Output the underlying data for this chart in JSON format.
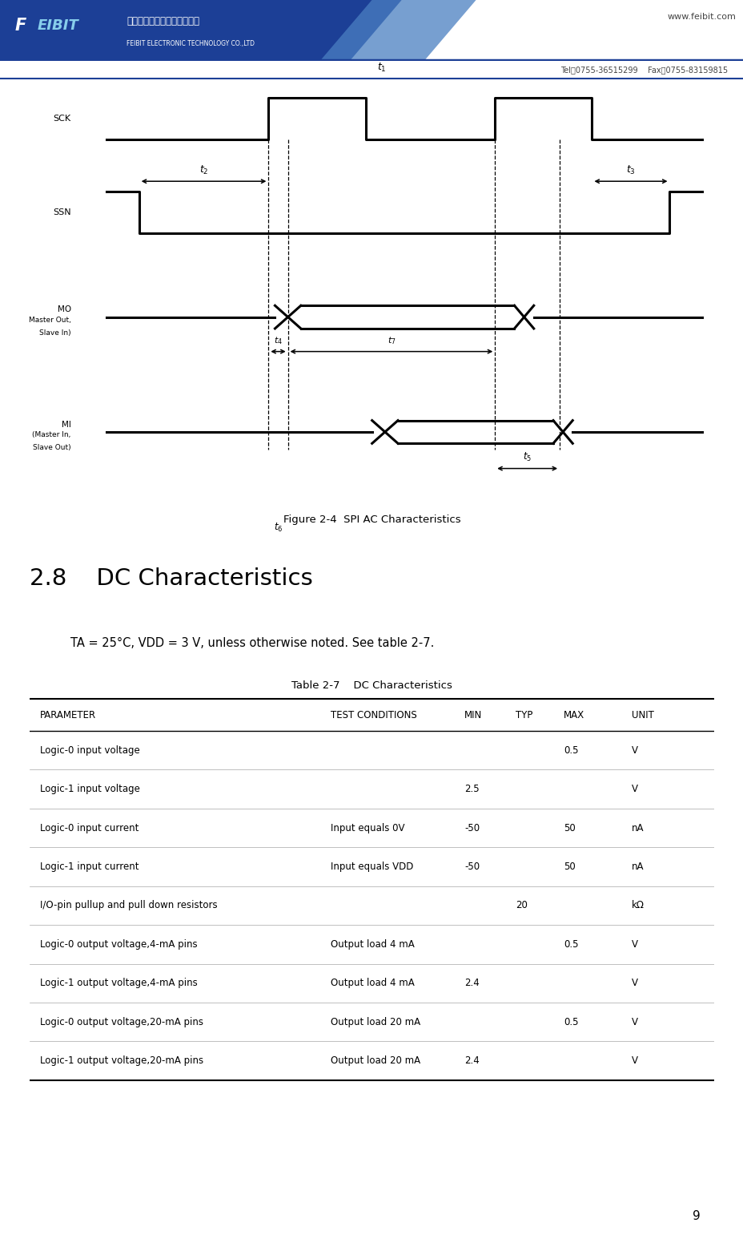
{
  "page_width": 9.29,
  "page_height": 15.56,
  "background_color": "#ffffff",
  "company_url": "www.feibit.com",
  "tel_fax": "Tel： 0755-36515299    Fax： 0755-83159815",
  "figure_caption": "Figure 2-4  SPI AC Characteristics",
  "section_title": "2.8    DC Characteristics",
  "condition_text": "TA = 25°C, VDD = 3 V, unless otherwise noted. See table 2-7.",
  "table_title": "Table 2-7    DC Characteristics",
  "page_number": "9",
  "table_headers": [
    "PARAMETER",
    "TEST CONDITIONS",
    "MIN",
    "TYP",
    "MAX",
    "UNIT"
  ],
  "table_rows": [
    [
      "Logic-0 input voltage",
      "",
      "",
      "",
      "0.5",
      "V"
    ],
    [
      "Logic-1 input voltage",
      "",
      "2.5",
      "",
      "",
      "V"
    ],
    [
      "Logic-0 input current",
      "Input equals 0V",
      "-50",
      "",
      "50",
      "nA"
    ],
    [
      "Logic-1 input current",
      "Input equals VDD",
      "-50",
      "",
      "50",
      "nA"
    ],
    [
      "I/O-pin pullup and pull down resistors",
      "",
      "",
      "20",
      "",
      "kΩ"
    ],
    [
      "Logic-0 output voltage,4-mA pins",
      "Output load 4 mA",
      "",
      "",
      "0.5",
      "V"
    ],
    [
      "Logic-1 output voltage,4-mA pins",
      "Output load 4 mA",
      "2.4",
      "",
      "",
      "V"
    ],
    [
      "Logic-0 output voltage,20-mA pins",
      "Output load 20 mA",
      "",
      "",
      "0.5",
      "V"
    ],
    [
      "Logic-1 output voltage,20-mA pins",
      "Output load 20 mA",
      "2.4",
      "",
      "",
      "V"
    ]
  ],
  "header_bg_color": "#1c3f96",
  "header_stripe_color": "#4a7fc1",
  "header_line_color": "#1c3f96"
}
